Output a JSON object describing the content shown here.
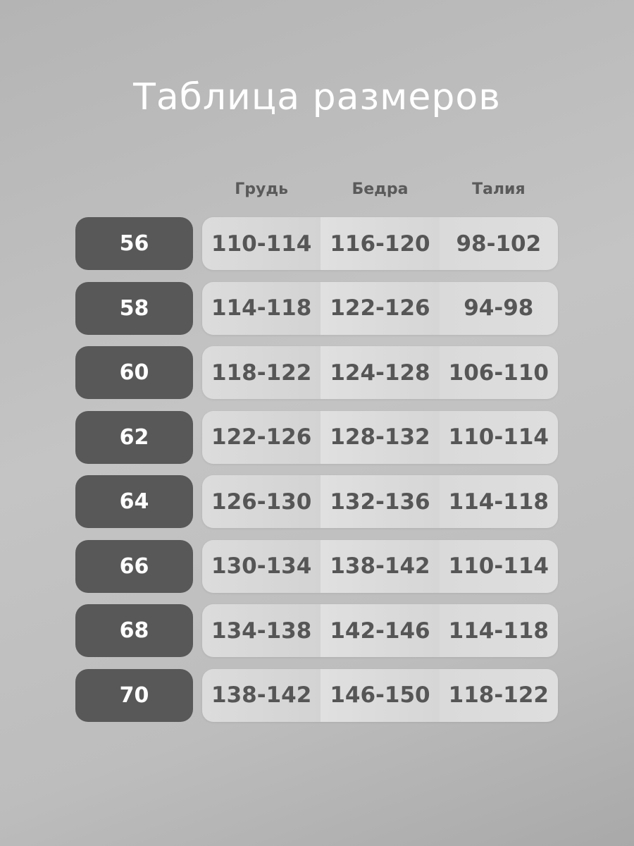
{
  "title": "Таблица размеров",
  "headers": [
    "Грудь",
    "Бедра",
    "Талия"
  ],
  "rows": [
    {
      "size": "56",
      "values": [
        "110-114",
        "116-120",
        "98-102"
      ]
    },
    {
      "size": "58",
      "values": [
        "114-118",
        "122-126",
        "94-98"
      ]
    },
    {
      "size": "60",
      "values": [
        "118-122",
        "124-128",
        "106-110"
      ]
    },
    {
      "size": "62",
      "values": [
        "122-126",
        "128-132",
        "110-114"
      ]
    },
    {
      "size": "64",
      "values": [
        "126-130",
        "132-136",
        "114-118"
      ]
    },
    {
      "size": "66",
      "values": [
        "130-134",
        "138-142",
        "110-114"
      ]
    },
    {
      "size": "68",
      "values": [
        "134-138",
        "142-146",
        "114-118"
      ]
    },
    {
      "size": "70",
      "values": [
        "138-142",
        "146-150",
        "118-122"
      ]
    }
  ],
  "colors": {
    "size_box": "#585858",
    "cell": "#dadada",
    "header_text": "#5a5a5a",
    "title": "#ffffff"
  }
}
